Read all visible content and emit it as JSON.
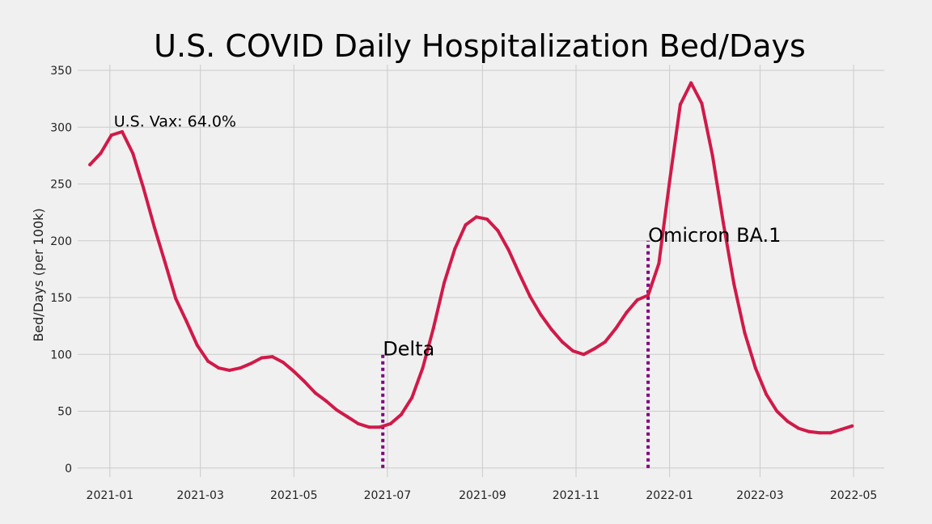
{
  "colors": {
    "background": "#f0f0f0",
    "line": "#d01a49",
    "marker": "#800080",
    "grid": "#cbcbcb"
  },
  "chart_data": {
    "type": "line",
    "title": "U.S. COVID Daily Hospitalization Bed/Days",
    "xlabel": "",
    "ylabel": "Bed/Days (per 100k)",
    "ylim": [
      -8,
      355
    ],
    "xlim": [
      "2020-12-11",
      "2022-05-21"
    ],
    "x_ticks": [
      "2021-01",
      "2021-03",
      "2021-05",
      "2021-07",
      "2021-09",
      "2021-11",
      "2022-01",
      "2022-03",
      "2022-05"
    ],
    "y_ticks": [
      0,
      50,
      100,
      150,
      200,
      250,
      300,
      350
    ],
    "grid": true,
    "series": [
      {
        "x": [
          "2020-12-19",
          "2020-12-26",
          "2021-01-02",
          "2021-01-09",
          "2021-01-16",
          "2021-01-23",
          "2021-01-30",
          "2021-02-06",
          "2021-02-13",
          "2021-02-20",
          "2021-02-27",
          "2021-03-06",
          "2021-03-13",
          "2021-03-20",
          "2021-03-27",
          "2021-04-03",
          "2021-04-10",
          "2021-04-17",
          "2021-04-24",
          "2021-05-01",
          "2021-05-08",
          "2021-05-15",
          "2021-05-22",
          "2021-05-29",
          "2021-06-05",
          "2021-06-12",
          "2021-06-19",
          "2021-06-26",
          "2021-07-03",
          "2021-07-10",
          "2021-07-17",
          "2021-07-24",
          "2021-07-31",
          "2021-08-07",
          "2021-08-14",
          "2021-08-21",
          "2021-08-28",
          "2021-09-04",
          "2021-09-11",
          "2021-09-18",
          "2021-09-25",
          "2021-10-02",
          "2021-10-09",
          "2021-10-16",
          "2021-10-23",
          "2021-10-30",
          "2021-11-06",
          "2021-11-13",
          "2021-11-20",
          "2021-11-27",
          "2021-12-04",
          "2021-12-11",
          "2021-12-18",
          "2021-12-25",
          "2022-01-01",
          "2022-01-08",
          "2022-01-15",
          "2022-01-22",
          "2022-01-29",
          "2022-02-05",
          "2022-02-12",
          "2022-02-19",
          "2022-02-26",
          "2022-03-05",
          "2022-03-12",
          "2022-03-19",
          "2022-03-26",
          "2022-04-02",
          "2022-04-09",
          "2022-04-16",
          "2022-04-23",
          "2022-04-30"
        ],
        "y": [
          267,
          277,
          293,
          296,
          277,
          246,
          212,
          181,
          149,
          129,
          108,
          94,
          88,
          86,
          88,
          92,
          97,
          98,
          93,
          85,
          76,
          66,
          59,
          51,
          45,
          39,
          36,
          36,
          39,
          47,
          62,
          88,
          123,
          163,
          193,
          214,
          221,
          219,
          209,
          192,
          171,
          151,
          135,
          122,
          111,
          103,
          100,
          105,
          111,
          123,
          137,
          148,
          152,
          180,
          252,
          320,
          339,
          321,
          275,
          216,
          162,
          119,
          88,
          65,
          50,
          41,
          35,
          32,
          31,
          31,
          34,
          37
        ]
      }
    ],
    "annotations": [
      {
        "text": "U.S. Vax: 64.0%",
        "x": "2021-01-02",
        "y": 300
      },
      {
        "text": "Delta",
        "x": "2021-06-28",
        "y": 100,
        "marker_from": 0,
        "marker_to": 100
      },
      {
        "text": "Omicron BA.1",
        "x": "2021-12-18",
        "y": 200,
        "marker_from": 0,
        "marker_to": 200
      }
    ]
  }
}
